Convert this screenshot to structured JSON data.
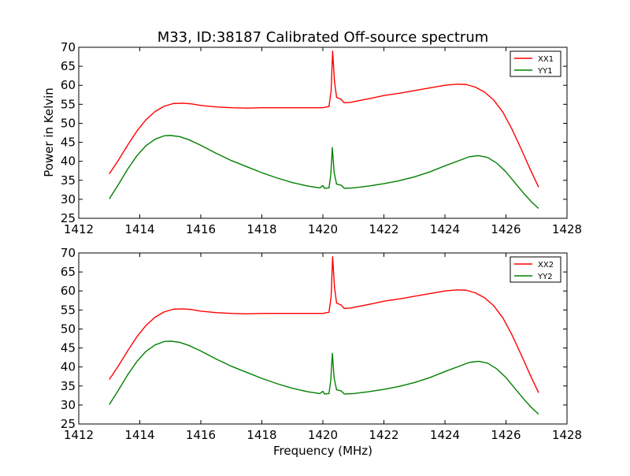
{
  "chart_data": [
    {
      "type": "line",
      "title": "M33, ID:38187 Calibrated Off-source spectrum",
      "xlabel": "",
      "ylabel": "Power in Kelvin",
      "xlim": [
        1412,
        1428
      ],
      "ylim": [
        25,
        70
      ],
      "xticks": [
        "1412",
        "1414",
        "1416",
        "1418",
        "1420",
        "1422",
        "1424",
        "1426",
        "1428"
      ],
      "yticks": [
        "25",
        "30",
        "35",
        "40",
        "45",
        "50",
        "55",
        "60",
        "65",
        "70"
      ],
      "legend_position": "top-right",
      "grid": false,
      "series": [
        {
          "name": "XX1",
          "color": "#ff0000",
          "points": [
            [
              1413.0,
              36.7
            ],
            [
              1413.3,
              40.3
            ],
            [
              1413.6,
              44.2
            ],
            [
              1413.9,
              47.9
            ],
            [
              1414.2,
              50.9
            ],
            [
              1414.5,
              53.1
            ],
            [
              1414.8,
              54.5
            ],
            [
              1415.1,
              55.2
            ],
            [
              1415.4,
              55.3
            ],
            [
              1415.7,
              55.1
            ],
            [
              1416.0,
              54.7
            ],
            [
              1416.5,
              54.3
            ],
            [
              1417.0,
              54.1
            ],
            [
              1417.5,
              54.0
            ],
            [
              1418.0,
              54.1
            ],
            [
              1418.5,
              54.1
            ],
            [
              1419.0,
              54.1
            ],
            [
              1419.5,
              54.1
            ],
            [
              1420.0,
              54.1
            ],
            [
              1420.2,
              54.4
            ],
            [
              1420.27,
              58.5
            ],
            [
              1420.32,
              69.0
            ],
            [
              1420.38,
              61.0
            ],
            [
              1420.45,
              56.8
            ],
            [
              1420.6,
              56.3
            ],
            [
              1420.7,
              55.4
            ],
            [
              1420.9,
              55.5
            ],
            [
              1421.2,
              56.0
            ],
            [
              1421.6,
              56.6
            ],
            [
              1422.0,
              57.3
            ],
            [
              1422.5,
              57.9
            ],
            [
              1423.0,
              58.6
            ],
            [
              1423.5,
              59.3
            ],
            [
              1424.0,
              60.0
            ],
            [
              1424.4,
              60.3
            ],
            [
              1424.7,
              60.2
            ],
            [
              1425.0,
              59.5
            ],
            [
              1425.3,
              58.2
            ],
            [
              1425.6,
              56.1
            ],
            [
              1425.9,
              52.9
            ],
            [
              1426.2,
              48.4
            ],
            [
              1426.5,
              43.2
            ],
            [
              1426.8,
              37.8
            ],
            [
              1427.07,
              33.2
            ]
          ]
        },
        {
          "name": "YY1",
          "color": "#008000",
          "points": [
            [
              1413.0,
              30.1
            ],
            [
              1413.3,
              33.9
            ],
            [
              1413.6,
              37.9
            ],
            [
              1413.9,
              41.4
            ],
            [
              1414.2,
              44.1
            ],
            [
              1414.5,
              45.8
            ],
            [
              1414.8,
              46.7
            ],
            [
              1415.0,
              46.8
            ],
            [
              1415.3,
              46.5
            ],
            [
              1415.6,
              45.7
            ],
            [
              1416.0,
              44.2
            ],
            [
              1416.5,
              42.1
            ],
            [
              1417.0,
              40.2
            ],
            [
              1417.5,
              38.6
            ],
            [
              1418.0,
              37.0
            ],
            [
              1418.5,
              35.6
            ],
            [
              1419.0,
              34.4
            ],
            [
              1419.5,
              33.5
            ],
            [
              1419.9,
              33.0
            ],
            [
              1420.0,
              33.6
            ],
            [
              1420.05,
              32.9
            ],
            [
              1420.2,
              33.0
            ],
            [
              1420.26,
              36.5
            ],
            [
              1420.31,
              43.6
            ],
            [
              1420.37,
              37.0
            ],
            [
              1420.45,
              34.0
            ],
            [
              1420.6,
              33.7
            ],
            [
              1420.7,
              32.9
            ],
            [
              1421.0,
              33.0
            ],
            [
              1421.5,
              33.5
            ],
            [
              1422.0,
              34.1
            ],
            [
              1422.5,
              34.9
            ],
            [
              1423.0,
              35.9
            ],
            [
              1423.5,
              37.2
            ],
            [
              1424.0,
              38.8
            ],
            [
              1424.5,
              40.3
            ],
            [
              1424.8,
              41.2
            ],
            [
              1425.1,
              41.5
            ],
            [
              1425.4,
              41.0
            ],
            [
              1425.7,
              39.5
            ],
            [
              1426.0,
              37.2
            ],
            [
              1426.3,
              34.3
            ],
            [
              1426.6,
              31.4
            ],
            [
              1426.85,
              29.2
            ],
            [
              1427.07,
              27.6
            ]
          ]
        }
      ]
    },
    {
      "type": "line",
      "title": "",
      "xlabel": "Frequency (MHz)",
      "ylabel": "",
      "xlim": [
        1412,
        1428
      ],
      "ylim": [
        25,
        70
      ],
      "xticks": [
        "1412",
        "1414",
        "1416",
        "1418",
        "1420",
        "1422",
        "1424",
        "1426",
        "1428"
      ],
      "yticks": [
        "25",
        "30",
        "35",
        "40",
        "45",
        "50",
        "55",
        "60",
        "65",
        "70"
      ],
      "legend_position": "top-right",
      "grid": false,
      "series": [
        {
          "name": "XX2",
          "color": "#ff0000",
          "points": [
            [
              1413.0,
              36.7
            ],
            [
              1413.3,
              40.3
            ],
            [
              1413.6,
              44.2
            ],
            [
              1413.9,
              47.9
            ],
            [
              1414.2,
              50.9
            ],
            [
              1414.5,
              53.1
            ],
            [
              1414.8,
              54.5
            ],
            [
              1415.1,
              55.2
            ],
            [
              1415.4,
              55.3
            ],
            [
              1415.7,
              55.1
            ],
            [
              1416.0,
              54.7
            ],
            [
              1416.5,
              54.3
            ],
            [
              1417.0,
              54.1
            ],
            [
              1417.5,
              54.0
            ],
            [
              1418.0,
              54.1
            ],
            [
              1418.5,
              54.1
            ],
            [
              1419.0,
              54.1
            ],
            [
              1419.5,
              54.1
            ],
            [
              1420.0,
              54.1
            ],
            [
              1420.2,
              54.4
            ],
            [
              1420.27,
              58.5
            ],
            [
              1420.32,
              69.0
            ],
            [
              1420.38,
              61.0
            ],
            [
              1420.45,
              56.8
            ],
            [
              1420.6,
              56.3
            ],
            [
              1420.7,
              55.4
            ],
            [
              1420.9,
              55.5
            ],
            [
              1421.2,
              56.0
            ],
            [
              1421.6,
              56.6
            ],
            [
              1422.0,
              57.3
            ],
            [
              1422.5,
              57.9
            ],
            [
              1423.0,
              58.6
            ],
            [
              1423.5,
              59.3
            ],
            [
              1424.0,
              60.0
            ],
            [
              1424.4,
              60.3
            ],
            [
              1424.7,
              60.2
            ],
            [
              1425.0,
              59.5
            ],
            [
              1425.3,
              58.2
            ],
            [
              1425.6,
              56.1
            ],
            [
              1425.9,
              52.9
            ],
            [
              1426.2,
              48.4
            ],
            [
              1426.5,
              43.2
            ],
            [
              1426.8,
              37.8
            ],
            [
              1427.07,
              33.2
            ]
          ]
        },
        {
          "name": "YY2",
          "color": "#008000",
          "points": [
            [
              1413.0,
              30.1
            ],
            [
              1413.3,
              33.9
            ],
            [
              1413.6,
              37.9
            ],
            [
              1413.9,
              41.4
            ],
            [
              1414.2,
              44.1
            ],
            [
              1414.5,
              45.8
            ],
            [
              1414.8,
              46.7
            ],
            [
              1415.0,
              46.8
            ],
            [
              1415.3,
              46.5
            ],
            [
              1415.6,
              45.7
            ],
            [
              1416.0,
              44.2
            ],
            [
              1416.5,
              42.1
            ],
            [
              1417.0,
              40.2
            ],
            [
              1417.5,
              38.6
            ],
            [
              1418.0,
              37.0
            ],
            [
              1418.5,
              35.6
            ],
            [
              1419.0,
              34.4
            ],
            [
              1419.5,
              33.5
            ],
            [
              1419.9,
              33.0
            ],
            [
              1420.0,
              33.6
            ],
            [
              1420.05,
              32.9
            ],
            [
              1420.2,
              33.0
            ],
            [
              1420.26,
              36.5
            ],
            [
              1420.31,
              43.6
            ],
            [
              1420.37,
              37.0
            ],
            [
              1420.45,
              34.0
            ],
            [
              1420.6,
              33.7
            ],
            [
              1420.7,
              32.9
            ],
            [
              1421.0,
              33.0
            ],
            [
              1421.5,
              33.5
            ],
            [
              1422.0,
              34.1
            ],
            [
              1422.5,
              34.9
            ],
            [
              1423.0,
              35.9
            ],
            [
              1423.5,
              37.2
            ],
            [
              1424.0,
              38.8
            ],
            [
              1424.5,
              40.3
            ],
            [
              1424.8,
              41.2
            ],
            [
              1425.1,
              41.5
            ],
            [
              1425.4,
              41.0
            ],
            [
              1425.7,
              39.5
            ],
            [
              1426.0,
              37.2
            ],
            [
              1426.3,
              34.3
            ],
            [
              1426.6,
              31.4
            ],
            [
              1426.85,
              29.2
            ],
            [
              1427.07,
              27.6
            ]
          ]
        }
      ]
    }
  ]
}
